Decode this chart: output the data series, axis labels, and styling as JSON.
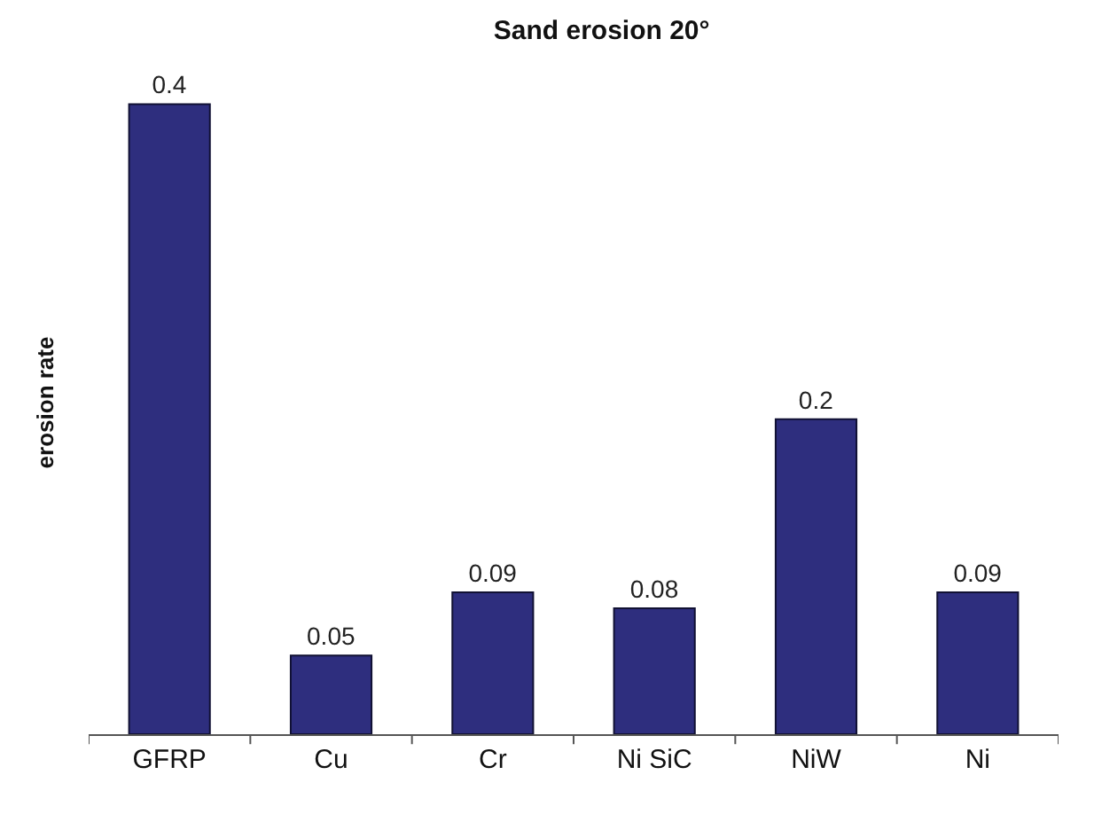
{
  "chart_data": {
    "type": "bar",
    "title": "Sand erosion 20°",
    "ylabel": "erosion rate",
    "categories": [
      "GFRP",
      "Cu",
      "Cr",
      "Ni SiC",
      "NiW",
      "Ni"
    ],
    "values": [
      0.4,
      0.05,
      0.09,
      0.08,
      0.2,
      0.09
    ],
    "color": "#2e2e7e",
    "data_labels": true,
    "tick_labels": "x"
  }
}
